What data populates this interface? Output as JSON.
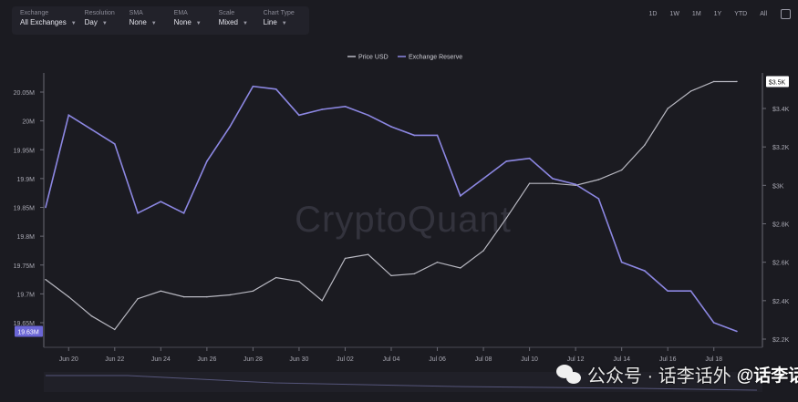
{
  "filters": [
    {
      "label": "Exchange",
      "value": "All Exchanges"
    },
    {
      "label": "Resolution",
      "value": "Day"
    },
    {
      "label": "SMA",
      "value": "None"
    },
    {
      "label": "EMA",
      "value": "None"
    },
    {
      "label": "Scale",
      "value": "Mixed"
    },
    {
      "label": "Chart Type",
      "value": "Line"
    }
  ],
  "ranges": [
    "1D",
    "1W",
    "1M",
    "1Y",
    "YTD",
    "All"
  ],
  "watermark_text": "公众号 · 话李话外",
  "watermark_name": "@话李话外",
  "brand_watermark": "CryptoQuant",
  "colors": {
    "price": "#b9b9c2",
    "reserve": "#8c87e2",
    "accent_badge": "#6b66d6"
  },
  "chart_data": {
    "type": "line",
    "title": "",
    "legend": {
      "placement": "top-center",
      "entries": [
        "Price USD",
        "Exchange Reserve"
      ]
    },
    "x_tick_labels": [
      "Jun 20",
      "Jun 22",
      "Jun 24",
      "Jun 26",
      "Jun 28",
      "Jun 30",
      "Jul 02",
      "Jul 04",
      "Jul 06",
      "Jul 08",
      "Jul 10",
      "Jul 12",
      "Jul 14",
      "Jul 16",
      "Jul 18"
    ],
    "left_axis": {
      "ticks": [
        "20.05M",
        "20M",
        "19.95M",
        "19.9M",
        "19.85M",
        "19.8M",
        "19.75M",
        "19.7M",
        "19.65M"
      ],
      "ylim": [
        19.63,
        20.07
      ],
      "current_value_label": "19.63M"
    },
    "right_axis": {
      "ticks": [
        "$3.4K",
        "$3.2K",
        "$3K",
        "$2.8K",
        "$2.6K",
        "$2.4K",
        "$2.2K"
      ],
      "ylim": [
        2200,
        3560
      ],
      "current_value_label": "$3.5K"
    },
    "x": [
      "Jun 19",
      "Jun 20",
      "Jun 21",
      "Jun 22",
      "Jun 23",
      "Jun 24",
      "Jun 25",
      "Jun 26",
      "Jun 27",
      "Jun 28",
      "Jun 29",
      "Jun 30",
      "Jul 01",
      "Jul 02",
      "Jul 03",
      "Jul 04",
      "Jul 05",
      "Jul 06",
      "Jul 07",
      "Jul 08",
      "Jul 09",
      "Jul 10",
      "Jul 11",
      "Jul 12",
      "Jul 13",
      "Jul 14",
      "Jul 15",
      "Jul 16",
      "Jul 17",
      "Jul 18",
      "Jul 19"
    ],
    "series": [
      {
        "name": "Exchange Reserve",
        "axis": "left",
        "values": [
          19.85,
          20.01,
          19.985,
          19.96,
          19.84,
          19.86,
          19.84,
          19.93,
          19.99,
          20.06,
          20.055,
          20.01,
          20.02,
          20.025,
          20.01,
          19.99,
          19.975,
          19.975,
          19.87,
          19.9,
          19.93,
          19.935,
          19.9,
          19.89,
          19.865,
          19.755,
          19.74,
          19.705,
          19.705,
          19.65,
          19.635
        ]
      },
      {
        "name": "Price USD",
        "axis": "right",
        "values": [
          2510,
          2420,
          2320,
          2250,
          2410,
          2450,
          2420,
          2420,
          2430,
          2450,
          2520,
          2500,
          2400,
          2620,
          2640,
          2530,
          2540,
          2600,
          2570,
          2660,
          2830,
          3010,
          3010,
          3000,
          3030,
          3080,
          3210,
          3400,
          3490,
          3540,
          3540
        ]
      }
    ],
    "grid": false
  }
}
